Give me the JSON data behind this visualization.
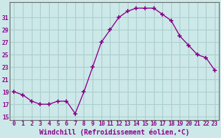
{
  "x": [
    0,
    1,
    2,
    3,
    4,
    5,
    6,
    7,
    8,
    9,
    10,
    11,
    12,
    13,
    14,
    15,
    16,
    17,
    18,
    19,
    20,
    21,
    22,
    23
  ],
  "y": [
    19.0,
    18.5,
    17.5,
    17.0,
    17.0,
    17.5,
    17.5,
    15.5,
    19.0,
    23.0,
    27.0,
    29.0,
    31.0,
    32.0,
    32.5,
    32.5,
    32.5,
    31.5,
    30.5,
    28.0,
    26.5,
    25.0,
    24.5,
    22.5
  ],
  "line_color": "#8B008B",
  "marker": "+",
  "marker_size": 4,
  "bg_color": "#cce8e8",
  "grid_color": "#aacece",
  "xlabel": "Windchill (Refroidissement éolien,°C)",
  "xlim": [
    -0.5,
    23.5
  ],
  "ylim": [
    14.5,
    33.5
  ],
  "yticks": [
    15,
    17,
    19,
    21,
    23,
    25,
    27,
    29,
    31
  ],
  "xticks": [
    0,
    1,
    2,
    3,
    4,
    5,
    6,
    7,
    8,
    9,
    10,
    11,
    12,
    13,
    14,
    15,
    16,
    17,
    18,
    19,
    20,
    21,
    22,
    23
  ],
  "tick_label_color": "#8B008B",
  "tick_label_size": 6,
  "xlabel_size": 7,
  "xlabel_color": "#8B008B",
  "xlabel_weight": "bold",
  "linewidth": 1.0
}
